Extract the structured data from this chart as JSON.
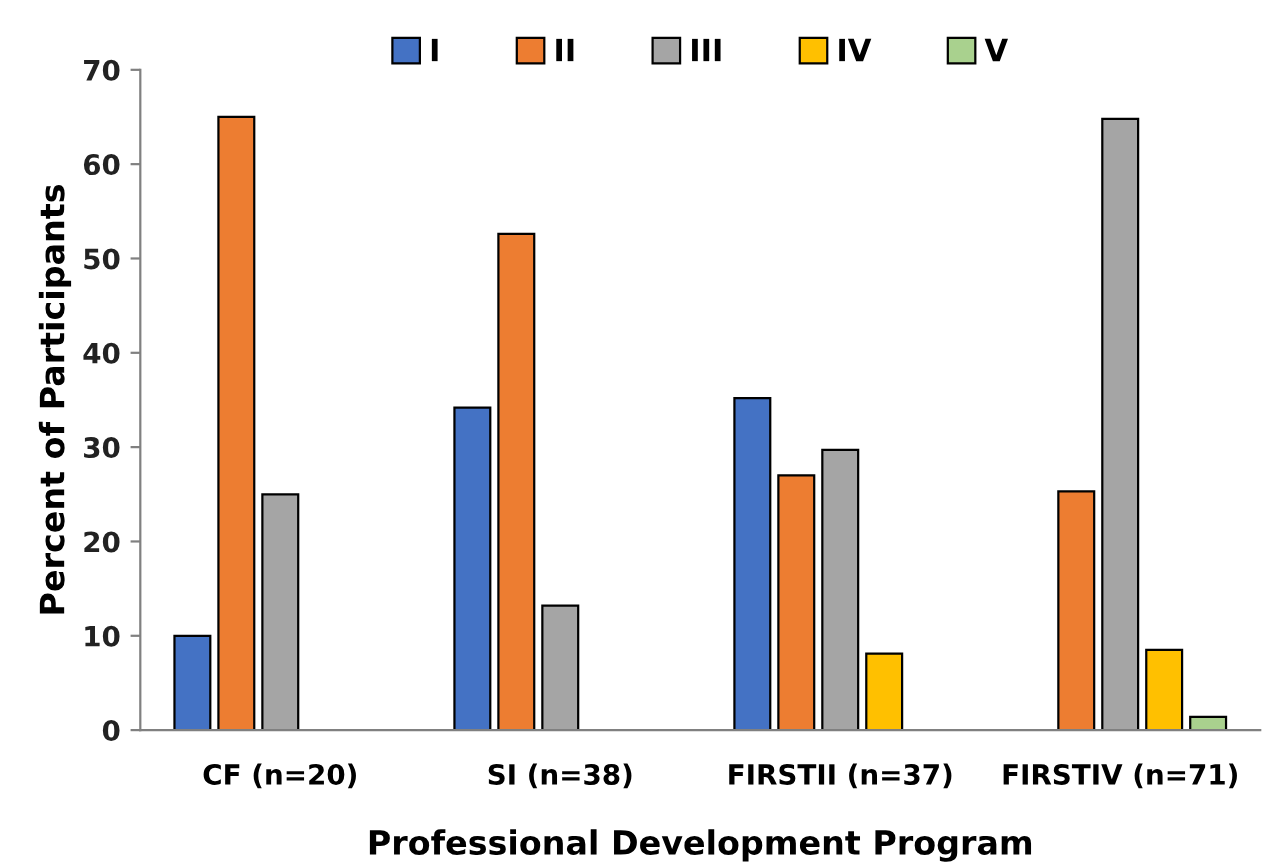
{
  "chart_data": {
    "type": "bar",
    "categories": [
      "CF (n=20)",
      "SI (n=38)",
      "FIRSTII (n=37)",
      "FIRSTIV (n=71)"
    ],
    "xlabel": "Professional Development Program",
    "ylabel": "Percent of Participants",
    "series": [
      {
        "name": "I",
        "color": "#4472c4",
        "values": [
          10.0,
          34.2,
          35.2,
          null
        ]
      },
      {
        "name": "II",
        "color": "#ed7d31",
        "values": [
          65.0,
          52.6,
          27.0,
          25.3
        ]
      },
      {
        "name": "III",
        "color": "#a5a5a5",
        "values": [
          25.0,
          13.2,
          29.7,
          64.8
        ]
      },
      {
        "name": "IV",
        "color": "#ffc000",
        "values": [
          null,
          null,
          8.1,
          8.5
        ]
      },
      {
        "name": "V",
        "color": "#a9d18e",
        "values": [
          null,
          null,
          null,
          1.4
        ]
      }
    ],
    "ylim": [
      0,
      70
    ],
    "yticks": [
      0,
      10,
      20,
      30,
      40,
      50,
      60,
      70
    ],
    "grid": false,
    "legend": "top"
  }
}
